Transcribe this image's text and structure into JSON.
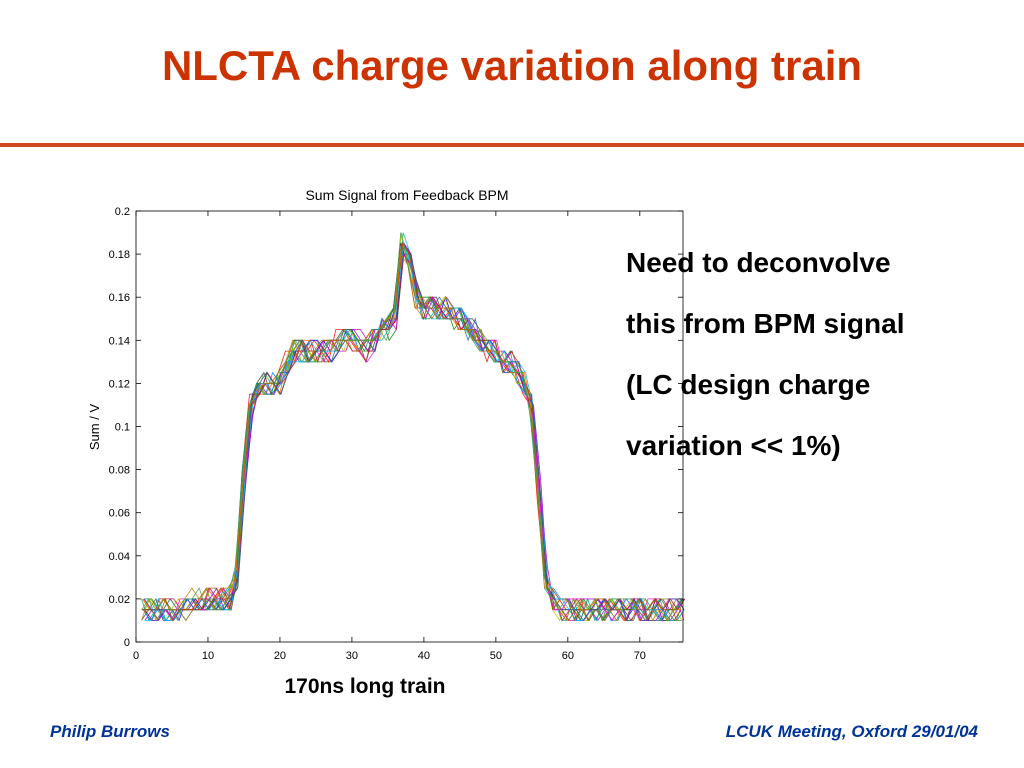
{
  "slide": {
    "title": "NLCTA charge variation along train",
    "caption": "170ns long train",
    "note_lines": [
      "Need to deconvolve",
      "this from BPM signal",
      "(LC design charge",
      "variation << 1%)"
    ],
    "footer_left": "Philip Burrows",
    "footer_right": "LCUK Meeting, Oxford 29/01/04",
    "colors": {
      "title": "#cc3300",
      "rule": "#cc4a1e",
      "footer": "#003399"
    }
  },
  "chart_data": {
    "type": "line",
    "title": "Sum Signal from Feedback BPM",
    "xlabel": "",
    "ylabel": "Sum / V",
    "xlim": [
      0,
      76
    ],
    "ylim": [
      0,
      0.2
    ],
    "xticks": [
      0,
      10,
      20,
      30,
      40,
      50,
      60,
      70
    ],
    "yticks": [
      0,
      0.02,
      0.04,
      0.06,
      0.08,
      0.1,
      0.12,
      0.14,
      0.16,
      0.18,
      0.2
    ],
    "grid": false,
    "legend": "none",
    "num_traces": 20,
    "x": [
      1,
      2,
      3,
      4,
      5,
      6,
      7,
      8,
      9,
      10,
      11,
      12,
      13,
      14,
      15,
      16,
      17,
      18,
      19,
      20,
      21,
      22,
      23,
      24,
      25,
      26,
      27,
      28,
      29,
      30,
      31,
      32,
      33,
      34,
      35,
      36,
      37,
      38,
      39,
      40,
      41,
      42,
      43,
      44,
      45,
      46,
      47,
      48,
      49,
      50,
      51,
      52,
      53,
      54,
      55,
      56,
      57,
      58,
      59,
      60,
      61,
      62,
      63,
      64,
      65,
      66,
      67,
      68,
      69,
      70,
      71,
      72,
      73,
      74,
      75,
      76
    ],
    "mean_profile": [
      0.015,
      0.016,
      0.015,
      0.016,
      0.016,
      0.017,
      0.017,
      0.018,
      0.018,
      0.019,
      0.018,
      0.019,
      0.02,
      0.03,
      0.075,
      0.11,
      0.118,
      0.12,
      0.118,
      0.122,
      0.128,
      0.134,
      0.137,
      0.136,
      0.135,
      0.134,
      0.136,
      0.139,
      0.142,
      0.14,
      0.138,
      0.136,
      0.14,
      0.144,
      0.146,
      0.152,
      0.185,
      0.178,
      0.16,
      0.155,
      0.156,
      0.155,
      0.154,
      0.152,
      0.15,
      0.147,
      0.143,
      0.14,
      0.136,
      0.133,
      0.13,
      0.128,
      0.126,
      0.12,
      0.11,
      0.07,
      0.028,
      0.02,
      0.017,
      0.016,
      0.016,
      0.015,
      0.015,
      0.016,
      0.015,
      0.016,
      0.016,
      0.015,
      0.016,
      0.016,
      0.015,
      0.016,
      0.016,
      0.015,
      0.015,
      0.016
    ],
    "trace_colors": [
      "#0000ff",
      "#008000",
      "#ff0000",
      "#00bfbf",
      "#bf00bf",
      "#bfbf00",
      "#404040",
      "#0080ff",
      "#80c000",
      "#ff6000",
      "#8000ff",
      "#00a080",
      "#c00040",
      "#606000",
      "#ff00ff",
      "#00c0ff",
      "#a05000",
      "#2060a0",
      "#c08000",
      "#50a050"
    ]
  }
}
